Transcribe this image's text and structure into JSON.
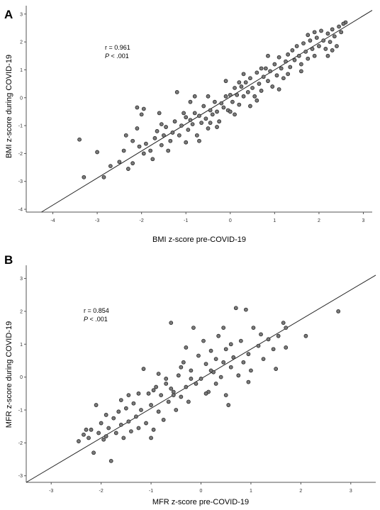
{
  "chart_data": [
    {
      "panel": "A",
      "type": "scatter",
      "xlabel": "BMI z-score pre-COVID-19",
      "ylabel": "BMI z-score during COVID-19",
      "xlim": [
        -4.6,
        3.2
      ],
      "ylim": [
        -4.1,
        3.3
      ],
      "xticks": [
        -4,
        -3,
        -2,
        -1,
        0,
        1,
        2,
        3
      ],
      "yticks": [
        -4,
        -3,
        -2,
        -1,
        0,
        1,
        2,
        3
      ],
      "annotation": {
        "r": "r = 0.961",
        "p_symbol": "P",
        "p_rest": " < .001"
      },
      "fit_line": {
        "slope": 0.97,
        "intercept": 0.03
      },
      "points": [
        [
          -3.4,
          -1.5
        ],
        [
          -3.3,
          -2.85
        ],
        [
          -3.0,
          -1.95
        ],
        [
          -2.85,
          -2.85
        ],
        [
          -2.7,
          -2.45
        ],
        [
          -2.5,
          -2.3
        ],
        [
          -2.3,
          -2.55
        ],
        [
          -2.2,
          -2.35
        ],
        [
          -2.1,
          -0.35
        ],
        [
          -2.0,
          -0.6
        ],
        [
          -1.95,
          -0.4
        ],
        [
          -2.35,
          -1.35
        ],
        [
          -2.2,
          -1.55
        ],
        [
          -2.05,
          -1.75
        ],
        [
          -1.95,
          -2.0
        ],
        [
          -1.9,
          -1.65
        ],
        [
          -1.8,
          -1.9
        ],
        [
          -1.7,
          -1.45
        ],
        [
          -1.65,
          -1.2
        ],
        [
          -1.55,
          -1.7
        ],
        [
          -1.5,
          -1.35
        ],
        [
          -1.45,
          -1.05
        ],
        [
          -1.35,
          -1.55
        ],
        [
          -1.3,
          -1.25
        ],
        [
          -1.25,
          -0.85
        ],
        [
          -1.15,
          -1.35
        ],
        [
          -1.1,
          -1.0
        ],
        [
          -1.05,
          -0.55
        ],
        [
          -1.0,
          -0.7
        ],
        [
          -0.95,
          -1.15
        ],
        [
          -0.9,
          -0.8
        ],
        [
          -0.85,
          -0.95
        ],
        [
          -0.8,
          -0.55
        ],
        [
          -0.75,
          -1.35
        ],
        [
          -0.7,
          -0.65
        ],
        [
          -0.65,
          -0.9
        ],
        [
          -0.6,
          -0.3
        ],
        [
          -0.55,
          -0.75
        ],
        [
          -0.5,
          -1.1
        ],
        [
          -0.45,
          -0.45
        ],
        [
          -0.4,
          -0.6
        ],
        [
          -0.35,
          -0.15
        ],
        [
          -0.3,
          -0.5
        ],
        [
          -0.25,
          -0.85
        ],
        [
          -0.2,
          -0.2
        ],
        [
          -0.15,
          -0.35
        ],
        [
          -0.1,
          0.05
        ],
        [
          -0.05,
          -0.45
        ],
        [
          0.0,
          0.1
        ],
        [
          0.05,
          -0.15
        ],
        [
          0.1,
          0.35
        ],
        [
          0.15,
          0.1
        ],
        [
          0.2,
          -0.25
        ],
        [
          0.25,
          0.4
        ],
        [
          0.3,
          0.05
        ],
        [
          0.35,
          0.55
        ],
        [
          0.4,
          0.2
        ],
        [
          0.45,
          0.7
        ],
        [
          0.5,
          0.35
        ],
        [
          0.55,
          0.05
        ],
        [
          0.6,
          0.9
        ],
        [
          0.65,
          0.5
        ],
        [
          0.7,
          0.25
        ],
        [
          0.75,
          0.75
        ],
        [
          0.8,
          1.05
        ],
        [
          0.85,
          0.6
        ],
        [
          0.9,
          0.95
        ],
        [
          0.95,
          0.4
        ],
        [
          1.0,
          1.2
        ],
        [
          1.05,
          0.8
        ],
        [
          1.1,
          1.45
        ],
        [
          1.15,
          1.05
        ],
        [
          1.2,
          0.7
        ],
        [
          1.25,
          1.3
        ],
        [
          1.3,
          1.55
        ],
        [
          1.35,
          1.1
        ],
        [
          1.4,
          1.7
        ],
        [
          1.45,
          1.35
        ],
        [
          1.5,
          1.85
        ],
        [
          1.55,
          1.5
        ],
        [
          1.6,
          1.2
        ],
        [
          1.65,
          1.95
        ],
        [
          1.7,
          1.65
        ],
        [
          1.75,
          1.4
        ],
        [
          1.8,
          2.05
        ],
        [
          1.85,
          1.75
        ],
        [
          1.9,
          1.5
        ],
        [
          1.95,
          2.15
        ],
        [
          2.0,
          1.85
        ],
        [
          2.05,
          2.4
        ],
        [
          2.1,
          2.05
        ],
        [
          2.15,
          1.75
        ],
        [
          2.2,
          2.3
        ],
        [
          2.25,
          2.0
        ],
        [
          2.3,
          2.45
        ],
        [
          2.35,
          2.2
        ],
        [
          2.4,
          1.85
        ],
        [
          2.45,
          2.55
        ],
        [
          2.5,
          2.35
        ],
        [
          2.6,
          2.7
        ],
        [
          2.55,
          2.65
        ],
        [
          -1.6,
          -0.55
        ],
        [
          -1.2,
          0.2
        ],
        [
          -0.9,
          -0.15
        ],
        [
          -0.5,
          0.05
        ],
        [
          -0.1,
          0.6
        ],
        [
          0.3,
          0.85
        ],
        [
          0.7,
          1.05
        ],
        [
          -0.3,
          -1.05
        ],
        [
          0.1,
          -0.6
        ],
        [
          0.45,
          -0.3
        ],
        [
          -2.4,
          -1.9
        ],
        [
          -1.75,
          -2.2
        ],
        [
          -1.4,
          -1.9
        ],
        [
          -0.7,
          -1.55
        ],
        [
          1.1,
          0.3
        ],
        [
          1.6,
          0.95
        ],
        [
          2.2,
          1.5
        ],
        [
          1.9,
          2.35
        ],
        [
          -0.8,
          0.05
        ],
        [
          0.85,
          1.5
        ],
        [
          0.0,
          -0.5
        ],
        [
          -1.0,
          -1.6
        ],
        [
          -2.1,
          -1.1
        ],
        [
          -1.55,
          -0.95
        ],
        [
          0.6,
          -0.1
        ],
        [
          1.3,
          0.85
        ],
        [
          1.75,
          2.25
        ],
        [
          2.3,
          1.7
        ],
        [
          -0.45,
          -0.9
        ],
        [
          0.2,
          0.55
        ]
      ]
    },
    {
      "panel": "B",
      "type": "scatter",
      "xlabel": "MFR z-score pre-COVID-19",
      "ylabel": "MFR z-score during COVID-19",
      "xlim": [
        -3.5,
        3.5
      ],
      "ylim": [
        -3.2,
        3.4
      ],
      "xticks": [
        -3,
        -2,
        -1,
        0,
        1,
        2,
        3
      ],
      "yticks": [
        -3,
        -2,
        -1,
        0,
        1,
        2,
        3
      ],
      "annotation": {
        "r": "r = 0.854",
        "p_symbol": "P",
        "p_rest": " < .001"
      },
      "fit_line": {
        "slope": 0.9,
        "intercept": -0.05
      },
      "points": [
        [
          -2.45,
          -1.95
        ],
        [
          -2.35,
          -1.75
        ],
        [
          -2.25,
          -1.85
        ],
        [
          -2.2,
          -1.6
        ],
        [
          -2.15,
          -2.3
        ],
        [
          -2.1,
          -0.85
        ],
        [
          -2.05,
          -1.7
        ],
        [
          -2.0,
          -1.4
        ],
        [
          -1.95,
          -1.9
        ],
        [
          -1.9,
          -1.15
        ],
        [
          -1.85,
          -1.55
        ],
        [
          -1.8,
          -2.55
        ],
        [
          -1.75,
          -1.25
        ],
        [
          -1.7,
          -1.7
        ],
        [
          -1.65,
          -1.05
        ],
        [
          -1.6,
          -1.45
        ],
        [
          -1.55,
          -1.85
        ],
        [
          -1.5,
          -0.95
        ],
        [
          -1.45,
          -1.35
        ],
        [
          -1.4,
          -1.65
        ],
        [
          -1.35,
          -0.8
        ],
        [
          -1.3,
          -1.2
        ],
        [
          -1.25,
          -1.55
        ],
        [
          -1.2,
          -1.0
        ],
        [
          -1.15,
          0.25
        ],
        [
          -1.1,
          -1.4
        ],
        [
          -1.05,
          -0.5
        ],
        [
          -1.0,
          -0.85
        ],
        [
          -0.95,
          -1.6
        ],
        [
          -0.9,
          -0.3
        ],
        [
          -0.85,
          -1.05
        ],
        [
          -0.8,
          -0.55
        ],
        [
          -0.75,
          -1.3
        ],
        [
          -0.7,
          -0.2
        ],
        [
          -0.65,
          -0.75
        ],
        [
          -0.6,
          1.65
        ],
        [
          -0.55,
          -0.45
        ],
        [
          -0.5,
          -1.0
        ],
        [
          -0.45,
          0.05
        ],
        [
          -0.4,
          -0.6
        ],
        [
          -0.35,
          0.45
        ],
        [
          -0.3,
          -0.3
        ],
        [
          -0.25,
          -0.75
        ],
        [
          -0.2,
          0.2
        ],
        [
          -0.15,
          1.5
        ],
        [
          -0.1,
          -0.2
        ],
        [
          -0.05,
          0.65
        ],
        [
          0.0,
          -0.05
        ],
        [
          0.05,
          1.1
        ],
        [
          0.1,
          0.4
        ],
        [
          0.15,
          -0.45
        ],
        [
          0.2,
          0.8
        ],
        [
          0.25,
          0.15
        ],
        [
          0.3,
          0.55
        ],
        [
          0.35,
          1.25
        ],
        [
          0.4,
          0.0
        ],
        [
          0.45,
          0.45
        ],
        [
          0.5,
          0.85
        ],
        [
          0.55,
          -0.85
        ],
        [
          0.6,
          0.3
        ],
        [
          0.65,
          0.6
        ],
        [
          0.7,
          2.1
        ],
        [
          0.75,
          0.05
        ],
        [
          0.8,
          1.1
        ],
        [
          0.85,
          0.45
        ],
        [
          0.9,
          2.05
        ],
        [
          0.95,
          0.7
        ],
        [
          1.0,
          0.2
        ],
        [
          1.05,
          1.5
        ],
        [
          1.15,
          0.95
        ],
        [
          1.25,
          0.55
        ],
        [
          1.35,
          1.15
        ],
        [
          1.45,
          0.85
        ],
        [
          1.5,
          0.25
        ],
        [
          1.55,
          1.25
        ],
        [
          1.65,
          1.65
        ],
        [
          1.7,
          0.9
        ],
        [
          2.1,
          1.25
        ],
        [
          2.75,
          2.0
        ],
        [
          -0.7,
          -0.05
        ],
        [
          -0.3,
          0.9
        ],
        [
          0.1,
          -0.5
        ],
        [
          0.5,
          -0.55
        ],
        [
          -1.25,
          -0.5
        ],
        [
          -0.95,
          -0.4
        ],
        [
          -0.6,
          -0.35
        ],
        [
          -0.2,
          -0.05
        ],
        [
          0.2,
          0.2
        ],
        [
          -1.6,
          -0.7
        ],
        [
          -2.3,
          -1.6
        ],
        [
          -1.9,
          -1.8
        ],
        [
          0.6,
          1.0
        ],
        [
          1.2,
          1.3
        ],
        [
          1.7,
          1.5
        ],
        [
          -0.4,
          0.3
        ],
        [
          0.3,
          -0.2
        ],
        [
          -1.45,
          -0.55
        ],
        [
          -0.85,
          0.1
        ],
        [
          0.95,
          -0.15
        ],
        [
          0.45,
          1.5
        ],
        [
          -1.0,
          -1.85
        ],
        [
          -0.55,
          -0.55
        ]
      ]
    }
  ]
}
